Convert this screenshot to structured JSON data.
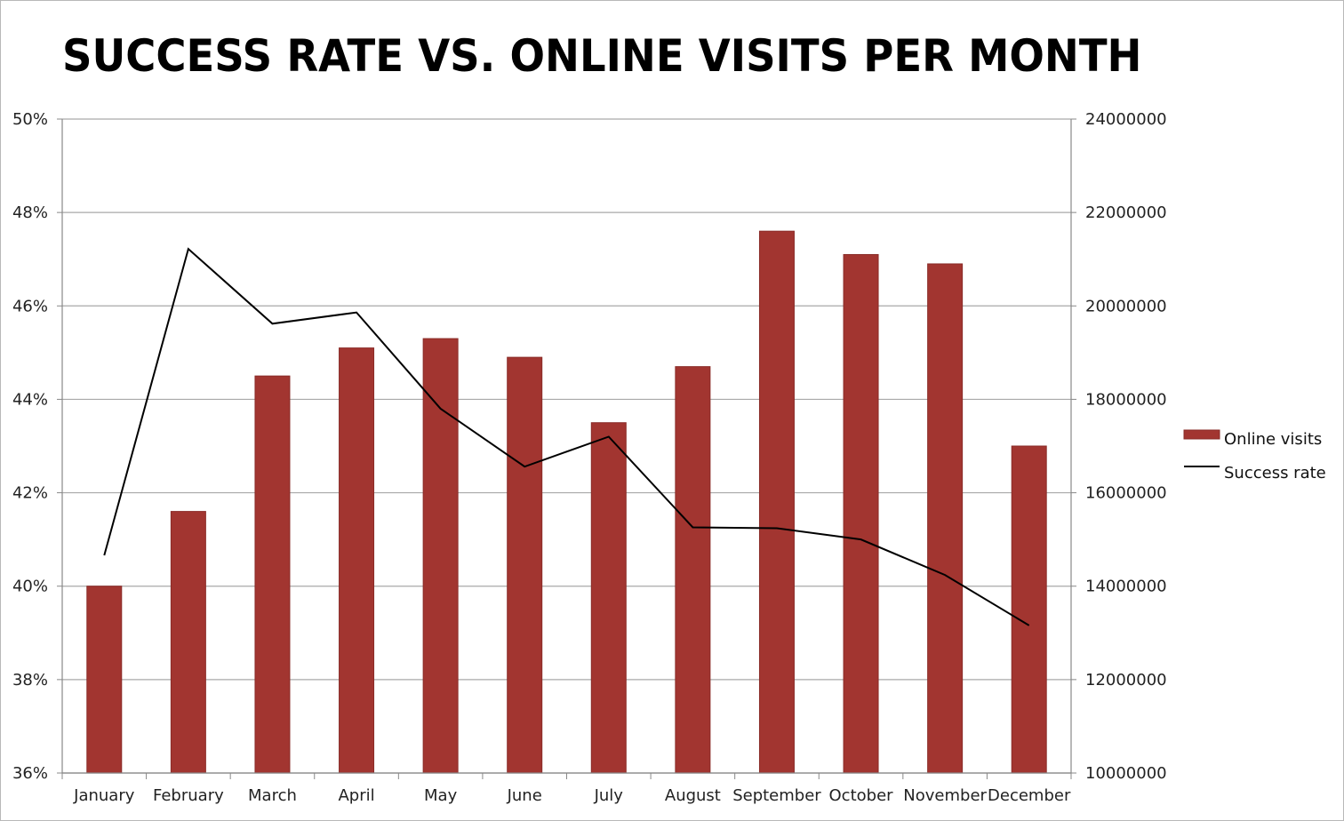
{
  "chart_data": {
    "type": "bar",
    "title": "SUCCESS RATE VS. ONLINE VISITS PER MONTH",
    "categories": [
      "January",
      "February",
      "March",
      "April",
      "May",
      "June",
      "July",
      "August",
      "September",
      "October",
      "November",
      "December"
    ],
    "series": [
      {
        "name": "Online visits",
        "type": "bar",
        "axis": "right",
        "color": "#a23530",
        "values": [
          14000000,
          15600000,
          18500000,
          19100000,
          19300000,
          18900000,
          17500000,
          18700000,
          21600000,
          21100000,
          20900000,
          17000000
        ]
      },
      {
        "name": "Success rate",
        "type": "line",
        "axis": "left",
        "color": "#000000",
        "values": [
          0.4066,
          0.4722,
          0.4562,
          0.4586,
          0.438,
          0.4256,
          0.432,
          0.4126,
          0.4124,
          0.41,
          0.4024,
          0.3916
        ]
      }
    ],
    "y_left": {
      "ylim": [
        0.36,
        0.5
      ],
      "ticks": [
        "36%",
        "38%",
        "40%",
        "42%",
        "44%",
        "46%",
        "48%",
        "50%"
      ]
    },
    "y_right": {
      "ylim": [
        10000000,
        24000000
      ],
      "ticks": [
        "10000000",
        "12000000",
        "14000000",
        "16000000",
        "18000000",
        "20000000",
        "22000000",
        "24000000"
      ]
    },
    "grid": true,
    "legend_position": "right"
  }
}
